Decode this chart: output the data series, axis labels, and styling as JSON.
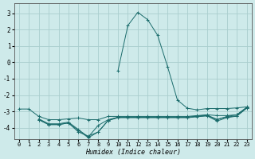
{
  "xlabel": "Humidex (Indice chaleur)",
  "bg_color": "#ceeaea",
  "grid_color": "#aacece",
  "line_color": "#1a6b6b",
  "xlim": [
    -0.5,
    23.5
  ],
  "ylim": [
    -4.7,
    3.6
  ],
  "yticks": [
    -4,
    -3,
    -2,
    -1,
    0,
    1,
    2,
    3
  ],
  "xticks": [
    0,
    1,
    2,
    3,
    4,
    5,
    6,
    7,
    8,
    9,
    10,
    11,
    12,
    13,
    14,
    15,
    16,
    17,
    18,
    19,
    20,
    21,
    22,
    23
  ],
  "series": [
    {
      "x": [
        0,
        1,
        2,
        3,
        4,
        5,
        6,
        7,
        8,
        9,
        10,
        11,
        12,
        13,
        14,
        15,
        16,
        17,
        18,
        19,
        20,
        21,
        22,
        23
      ],
      "y": [
        -2.85,
        -2.85,
        -3.3,
        -3.5,
        -3.5,
        -3.45,
        -3.4,
        -3.5,
        -3.5,
        -3.3,
        -3.3,
        -3.3,
        -3.3,
        -3.3,
        -3.3,
        -3.3,
        -3.3,
        -3.3,
        -3.25,
        -3.2,
        -3.25,
        -3.25,
        -3.2,
        -2.75
      ]
    },
    {
      "x": [
        2,
        3,
        4,
        5,
        6,
        7,
        8,
        9,
        10,
        11,
        12,
        13,
        14,
        15,
        16,
        17,
        18,
        19,
        20,
        21,
        22,
        23
      ],
      "y": [
        -3.45,
        -3.75,
        -3.75,
        -3.65,
        -4.1,
        -4.55,
        -3.85,
        -3.5,
        -3.35,
        -3.35,
        -3.35,
        -3.35,
        -3.35,
        -3.35,
        -3.35,
        -3.35,
        -3.3,
        -3.25,
        -3.5,
        -3.3,
        -3.2,
        -2.75
      ]
    },
    {
      "x": [
        2,
        3,
        4,
        5,
        6,
        7,
        8,
        9,
        10,
        11,
        12,
        13,
        14,
        15,
        16,
        17,
        18,
        19,
        20,
        21,
        22,
        23
      ],
      "y": [
        -3.5,
        -3.8,
        -3.8,
        -3.7,
        -4.15,
        -4.6,
        -4.25,
        -3.55,
        -3.38,
        -3.38,
        -3.38,
        -3.38,
        -3.38,
        -3.38,
        -3.38,
        -3.38,
        -3.32,
        -3.27,
        -3.58,
        -3.38,
        -3.28,
        -2.8
      ]
    },
    {
      "x": [
        2,
        3,
        4,
        5,
        6,
        7,
        8,
        9,
        10,
        11,
        12,
        13,
        14,
        15,
        16,
        17,
        18,
        19,
        20,
        21,
        22,
        23
      ],
      "y": [
        -3.5,
        -3.8,
        -3.8,
        -3.7,
        -4.25,
        -4.5,
        -4.25,
        -3.55,
        -3.35,
        -3.35,
        -3.35,
        -3.35,
        -3.35,
        -3.35,
        -3.35,
        -3.35,
        -3.28,
        -3.22,
        -3.48,
        -3.33,
        -3.27,
        -2.78
      ]
    },
    {
      "x": [
        10,
        11,
        12,
        13,
        14,
        15,
        16,
        17,
        18,
        19,
        20,
        21,
        22,
        23
      ],
      "y": [
        -0.5,
        2.25,
        3.05,
        2.6,
        1.65,
        -0.25,
        -2.3,
        -2.8,
        -2.9,
        -2.82,
        -2.82,
        -2.82,
        -2.78,
        -2.72
      ]
    }
  ]
}
